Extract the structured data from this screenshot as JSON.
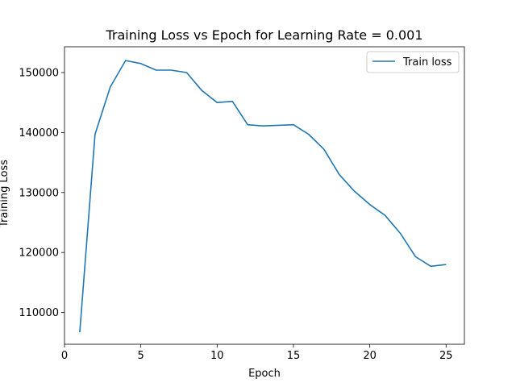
{
  "chart_data": {
    "type": "line",
    "title": "Training Loss vs Epoch for Learning Rate = 0.001",
    "xlabel": "Epoch",
    "ylabel": "Training Loss",
    "xlim": [
      0,
      26.2
    ],
    "ylim": [
      104700,
      154300
    ],
    "xticks": [
      0,
      5,
      10,
      15,
      20,
      25
    ],
    "yticks": [
      110000,
      120000,
      130000,
      140000,
      150000
    ],
    "grid": false,
    "legend_position": "top-right",
    "series": [
      {
        "name": "Train loss",
        "color": "#1f77b4",
        "x": [
          1,
          2,
          3,
          4,
          5,
          6,
          7,
          8,
          9,
          10,
          11,
          12,
          13,
          14,
          15,
          16,
          17,
          18,
          19,
          20,
          21,
          22,
          23,
          24,
          25
        ],
        "y": [
          106700,
          139700,
          147600,
          152000,
          151500,
          150400,
          150400,
          150000,
          147000,
          145000,
          145200,
          141300,
          141100,
          141200,
          141300,
          139700,
          137200,
          133000,
          130200,
          128000,
          126200,
          123200,
          119300,
          117700,
          118000
        ]
      }
    ]
  }
}
